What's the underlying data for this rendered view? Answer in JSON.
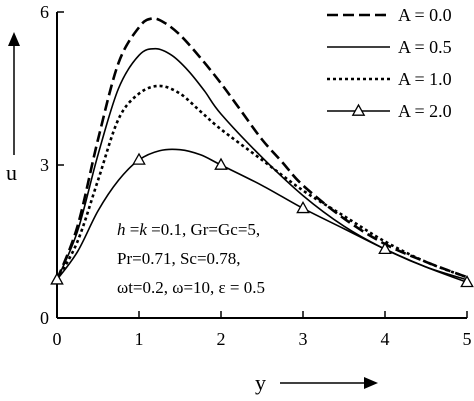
{
  "chart_data": {
    "type": "line",
    "title": "",
    "xlabel": "y",
    "ylabel": "u",
    "xlim": [
      0,
      5
    ],
    "ylim": [
      0,
      6
    ],
    "x_ticks": [
      "0",
      "1",
      "2",
      "3",
      "4",
      "5"
    ],
    "y_ticks": [
      "0",
      "3",
      "6"
    ],
    "grid": false,
    "legend_position": "top-right",
    "series": [
      {
        "name": "A = 0.0",
        "style": "dashed",
        "x": [
          0,
          0.25,
          0.5,
          0.75,
          1.0,
          1.15,
          1.3,
          1.5,
          1.75,
          2.0,
          2.25,
          2.5,
          2.75,
          3.0,
          3.5,
          4.0,
          4.5,
          5.0
        ],
        "y": [
          0.75,
          1.8,
          3.5,
          5.0,
          5.7,
          5.87,
          5.8,
          5.55,
          5.1,
          4.6,
          4.05,
          3.5,
          3.05,
          2.6,
          1.95,
          1.45,
          1.1,
          0.8
        ]
      },
      {
        "name": "A = 0.5",
        "style": "solid",
        "x": [
          0,
          0.25,
          0.5,
          0.75,
          1.0,
          1.2,
          1.4,
          1.6,
          1.8,
          2.0,
          2.5,
          3.0,
          3.5,
          4.0,
          4.5,
          5.0
        ],
        "y": [
          0.75,
          1.7,
          3.2,
          4.5,
          5.15,
          5.28,
          5.15,
          4.85,
          4.45,
          4.0,
          3.15,
          2.4,
          1.8,
          1.35,
          1.0,
          0.75
        ]
      },
      {
        "name": "A = 1.0",
        "style": "dotted",
        "x": [
          0,
          0.25,
          0.5,
          0.75,
          1.0,
          1.25,
          1.5,
          1.75,
          2.0,
          2.5,
          3.0,
          3.5,
          4.0,
          4.5,
          5.0
        ],
        "y": [
          0.75,
          1.5,
          2.7,
          3.9,
          4.4,
          4.55,
          4.4,
          4.05,
          3.7,
          3.1,
          2.5,
          2.0,
          1.5,
          1.1,
          0.8
        ]
      },
      {
        "name": "A = 2.0",
        "style": "solid-triangle",
        "x": [
          0,
          0.25,
          0.5,
          0.75,
          1.0,
          1.25,
          1.5,
          1.75,
          2.0,
          2.5,
          3.0,
          3.5,
          4.0,
          4.5,
          5.0
        ],
        "y": [
          0.75,
          1.3,
          2.1,
          2.7,
          3.1,
          3.28,
          3.3,
          3.2,
          3.0,
          2.6,
          2.15,
          1.75,
          1.35,
          1.0,
          0.7
        ],
        "markers_x": [
          0,
          1,
          2,
          3,
          4,
          5
        ],
        "markers_y": [
          0.75,
          3.1,
          3.0,
          2.15,
          1.35,
          0.7
        ]
      }
    ],
    "annotation_lines": [
      "h=k=0.1, Gr=Gc=5,",
      "Pr=0.71, Sc=0.78,",
      "ωt=0.2, ω=10, ε = 0.5"
    ]
  }
}
